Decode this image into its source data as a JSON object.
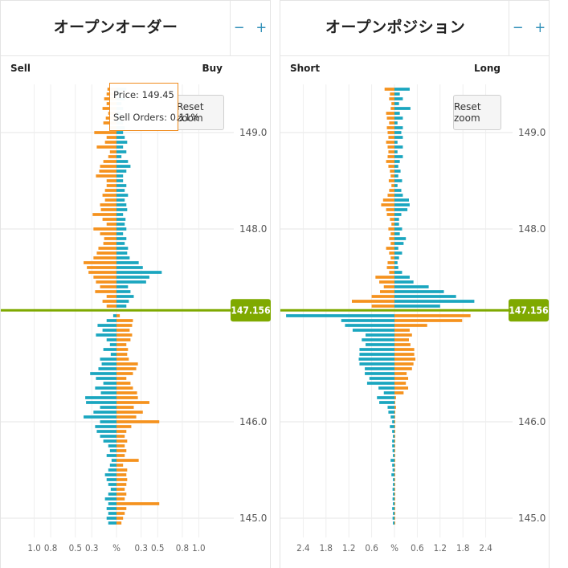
{
  "left_panel": {
    "title": "オープンオーダー",
    "zoom_out": "−",
    "zoom_in": "+",
    "reset_zoom": "Reset zoom",
    "tooltip": {
      "price": "Price: 149.45",
      "orders": "Sell Orders: 0.11%"
    }
  },
  "right_panel": {
    "title": "オープンポジション",
    "zoom_out": "−",
    "zoom_in": "+",
    "reset_zoom": "Reset zoom"
  },
  "colors": {
    "orange": "#f5921e",
    "teal": "#1aa6bf",
    "price_line": "#7fa900",
    "grid": "#e6e6e6"
  },
  "chart_data": [
    {
      "type": "bar",
      "orientation": "horizontal-butterfly",
      "left_label": "Sell",
      "right_label": "Buy",
      "current_price": 147.156,
      "current_price_label": "147.156",
      "price_ticks": [
        149.0,
        148.0,
        146.0,
        145.0
      ],
      "price_tick_labels": [
        "149.0",
        "148.0",
        "146.0",
        "145.0"
      ],
      "ylim": [
        144.9,
        149.5
      ],
      "x_ticks_left": [
        1.0,
        0.8,
        0.5,
        0.3
      ],
      "x_ticks_right": [
        0.3,
        0.5,
        0.8,
        1.0
      ],
      "x_tick_labels": [
        "1.0",
        "0.8",
        "0.5",
        "0.3",
        "%",
        "0.3",
        "0.5",
        "0.8",
        "1.0"
      ],
      "xlim": [
        -1.25,
        1.25
      ],
      "bin_size": 0.05,
      "above_price": {
        "prices": [
          149.45,
          149.4,
          149.35,
          149.3,
          149.25,
          149.2,
          149.15,
          149.1,
          149.05,
          149.0,
          148.95,
          148.9,
          148.85,
          148.8,
          148.75,
          148.7,
          148.65,
          148.6,
          148.55,
          148.5,
          148.45,
          148.4,
          148.35,
          148.3,
          148.25,
          148.2,
          148.15,
          148.1,
          148.05,
          148.0,
          147.95,
          147.9,
          147.85,
          147.8,
          147.75,
          147.7,
          147.65,
          147.6,
          147.55,
          147.5,
          147.45,
          147.4,
          147.35,
          147.3,
          147.25,
          147.2
        ],
        "sell_pct": [
          0.11,
          0.12,
          0.15,
          0.12,
          0.17,
          0.1,
          0.13,
          0.16,
          0.08,
          0.27,
          0.12,
          0.14,
          0.24,
          0.08,
          0.1,
          0.16,
          0.2,
          0.21,
          0.25,
          0.12,
          0.12,
          0.14,
          0.17,
          0.14,
          0.2,
          0.19,
          0.29,
          0.17,
          0.12,
          0.28,
          0.2,
          0.15,
          0.16,
          0.22,
          0.24,
          0.28,
          0.4,
          0.36,
          0.34,
          0.28,
          0.25,
          0.2,
          0.26,
          0.12,
          0.17,
          0.12
        ],
        "buy_pct": [
          0.12,
          0.06,
          0.1,
          0.06,
          0.08,
          0.05,
          0.07,
          0.08,
          0.1,
          0.08,
          0.1,
          0.13,
          0.08,
          0.12,
          0.06,
          0.14,
          0.17,
          0.12,
          0.08,
          0.08,
          0.12,
          0.1,
          0.14,
          0.1,
          0.12,
          0.13,
          0.08,
          0.11,
          0.1,
          0.12,
          0.08,
          0.12,
          0.1,
          0.14,
          0.13,
          0.16,
          0.27,
          0.32,
          0.55,
          0.4,
          0.36,
          0.14,
          0.17,
          0.21,
          0.15,
          0.12
        ]
      },
      "below_price": {
        "prices": [
          147.1,
          147.05,
          147.0,
          146.95,
          146.9,
          146.85,
          146.8,
          146.75,
          146.7,
          146.65,
          146.6,
          146.55,
          146.5,
          146.45,
          146.4,
          146.35,
          146.3,
          146.25,
          146.2,
          146.15,
          146.1,
          146.05,
          146.0,
          145.95,
          145.9,
          145.85,
          145.8,
          145.75,
          145.7,
          145.65,
          145.6,
          145.55,
          145.5,
          145.45,
          145.4,
          145.35,
          145.3,
          145.25,
          145.2,
          145.15,
          145.1,
          145.05,
          145.0,
          144.95
        ],
        "sell_pct": [
          0.04,
          0.12,
          0.23,
          0.17,
          0.25,
          0.12,
          0.08,
          0.16,
          0.07,
          0.2,
          0.18,
          0.22,
          0.32,
          0.25,
          0.16,
          0.26,
          0.19,
          0.38,
          0.37,
          0.2,
          0.28,
          0.4,
          0.2,
          0.26,
          0.24,
          0.2,
          0.16,
          0.1,
          0.08,
          0.12,
          0.06,
          0.08,
          0.1,
          0.14,
          0.12,
          0.1,
          0.07,
          0.1,
          0.14,
          0.1,
          0.12,
          0.1,
          0.12,
          0.1
        ],
        "buy_pct": [
          0.04,
          0.2,
          0.19,
          0.16,
          0.19,
          0.17,
          0.12,
          0.14,
          0.13,
          0.15,
          0.26,
          0.24,
          0.2,
          0.12,
          0.17,
          0.2,
          0.25,
          0.26,
          0.4,
          0.21,
          0.32,
          0.24,
          0.52,
          0.18,
          0.12,
          0.1,
          0.13,
          0.1,
          0.12,
          0.1,
          0.27,
          0.08,
          0.13,
          0.12,
          0.13,
          0.12,
          0.1,
          0.12,
          0.1,
          0.52,
          0.12,
          0.1,
          0.08,
          0.06
        ]
      }
    },
    {
      "type": "bar",
      "orientation": "horizontal-butterfly",
      "left_label": "Short",
      "right_label": "Long",
      "current_price": 147.156,
      "current_price_label": "147.156",
      "price_ticks": [
        149.0,
        148.0,
        146.0,
        145.0
      ],
      "price_tick_labels": [
        "149.0",
        "148.0",
        "146.0",
        "145.0"
      ],
      "ylim": [
        144.9,
        149.5
      ],
      "x_ticks_left": [
        2.4,
        1.8,
        1.2,
        0.6
      ],
      "x_ticks_right": [
        0.6,
        1.2,
        1.8,
        2.4
      ],
      "x_tick_labels": [
        "2.4",
        "1.8",
        "1.2",
        "0.6",
        "%",
        "0.6",
        "1.2",
        "1.8",
        "2.4"
      ],
      "xlim": [
        -3.0,
        3.0
      ],
      "bin_size": 0.05,
      "above_price": {
        "prices": [
          149.45,
          149.4,
          149.35,
          149.3,
          149.25,
          149.2,
          149.15,
          149.1,
          149.05,
          149.0,
          148.95,
          148.9,
          148.85,
          148.8,
          148.75,
          148.7,
          148.65,
          148.6,
          148.55,
          148.5,
          148.45,
          148.4,
          148.35,
          148.3,
          148.25,
          148.2,
          148.15,
          148.1,
          148.05,
          148.0,
          147.95,
          147.9,
          147.85,
          147.8,
          147.75,
          147.7,
          147.65,
          147.6,
          147.55,
          147.5,
          147.45,
          147.4,
          147.35,
          147.3,
          147.25,
          147.2
        ],
        "short_pct": [
          0.26,
          0.12,
          0.14,
          0.08,
          0.1,
          0.22,
          0.2,
          0.14,
          0.2,
          0.18,
          0.16,
          0.22,
          0.18,
          0.16,
          0.18,
          0.22,
          0.16,
          0.12,
          0.1,
          0.15,
          0.08,
          0.14,
          0.18,
          0.3,
          0.35,
          0.22,
          0.2,
          0.12,
          0.08,
          0.16,
          0.1,
          0.14,
          0.1,
          0.22,
          0.14,
          0.1,
          0.18,
          0.2,
          0.14,
          0.5,
          0.4,
          0.28,
          0.38,
          0.6,
          1.12,
          0.6
        ],
        "long_pct": [
          0.4,
          0.14,
          0.22,
          0.12,
          0.42,
          0.14,
          0.22,
          0.08,
          0.22,
          0.18,
          0.22,
          0.08,
          0.22,
          0.08,
          0.22,
          0.14,
          0.1,
          0.16,
          0.1,
          0.2,
          0.08,
          0.18,
          0.22,
          0.38,
          0.4,
          0.34,
          0.18,
          0.12,
          0.12,
          0.2,
          0.14,
          0.3,
          0.24,
          0.1,
          0.2,
          0.12,
          0.08,
          0.1,
          0.2,
          0.4,
          0.5,
          0.9,
          1.3,
          1.62,
          2.1,
          1.2
        ]
      },
      "below_price": {
        "prices": [
          147.1,
          147.05,
          147.0,
          146.95,
          146.9,
          146.85,
          146.8,
          146.75,
          146.7,
          146.65,
          146.6,
          146.55,
          146.5,
          146.45,
          146.4,
          146.35,
          146.3,
          146.25,
          146.2,
          146.15,
          146.1,
          146.05,
          146.0,
          145.95,
          145.9,
          145.85,
          145.8,
          145.75,
          145.7,
          145.65,
          145.6,
          145.55,
          145.5,
          145.45,
          145.4,
          145.35,
          145.3,
          145.25,
          145.2,
          145.15,
          145.1,
          145.05,
          145.0,
          144.95
        ],
        "short_pct": [
          2.85,
          1.4,
          1.3,
          1.1,
          0.76,
          0.86,
          0.76,
          0.92,
          0.92,
          0.94,
          0.92,
          0.78,
          0.78,
          0.66,
          0.72,
          0.42,
          0.28,
          0.46,
          0.4,
          0.18,
          0.16,
          0.1,
          0.06,
          0.12,
          0.06,
          0.04,
          0.06,
          0.06,
          0.05,
          0.04,
          0.1,
          0.06,
          0.05,
          0.08,
          0.04,
          0.04,
          0.05,
          0.04,
          0.05,
          0.04,
          0.06,
          0.04,
          0.05,
          0.04
        ],
        "long_pct": [
          2.0,
          1.78,
          0.86,
          0.4,
          0.46,
          0.38,
          0.42,
          0.52,
          0.52,
          0.55,
          0.5,
          0.46,
          0.32,
          0.36,
          0.3,
          0.36,
          0.24,
          0.04,
          0.02,
          0.04,
          0.02,
          0.02,
          0.02,
          0.02,
          0.02,
          0.02,
          0.02,
          0.02,
          0.02,
          0.02,
          0.02,
          0.02,
          0.02,
          0.02,
          0.02,
          0.02,
          0.02,
          0.02,
          0.02,
          0.02,
          0.02,
          0.02,
          0.02,
          0.02
        ]
      }
    }
  ]
}
